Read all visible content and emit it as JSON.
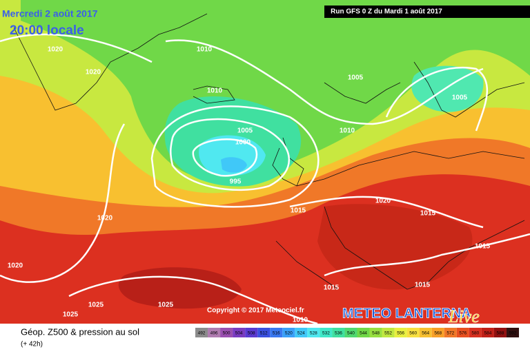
{
  "header": {
    "date": "Mercredi 2 août 2017",
    "time": "20:00 locale",
    "run": "Run GFS 0 Z du Mardi 1 août 2017"
  },
  "isobar_labels": [
    "1020",
    "1010",
    "1020",
    "1010",
    "1005",
    "1005",
    "1005",
    "1000",
    "1010",
    "995",
    "1020",
    "1015",
    "1015",
    "1020",
    "1020",
    "1015",
    "1015",
    "1015",
    "1025",
    "1025",
    "1025",
    "1010"
  ],
  "copyright": "Copyright © 2017 Meteociel.fr",
  "brand": {
    "name": "METEO LANTERNA",
    "tag": "Live"
  },
  "footer": {
    "title": "Géop. Z500 & pression au sol",
    "lead": "(+ 42h)"
  },
  "scale": {
    "labels": [
      "492",
      "496",
      "500",
      "504",
      "508",
      "512",
      "516",
      "520",
      "524",
      "528",
      "532",
      "536",
      "540",
      "544",
      "548",
      "552",
      "556",
      "560",
      "564",
      "568",
      "572",
      "576",
      "580",
      "584",
      "588",
      "592"
    ],
    "colors": [
      "#8c8c8c",
      "#b07cb0",
      "#9a4fb0",
      "#7a3cc0",
      "#5a3ad0",
      "#3a50e0",
      "#3a78f0",
      "#3aa0f8",
      "#40c8f8",
      "#50e8f0",
      "#40e8c8",
      "#40e0a0",
      "#50d870",
      "#70d848",
      "#98e040",
      "#c0e840",
      "#e8f040",
      "#f8e040",
      "#f8c030",
      "#f8a028",
      "#f07828",
      "#e85020",
      "#d83020",
      "#c02018",
      "#901010",
      "#301010"
    ]
  }
}
